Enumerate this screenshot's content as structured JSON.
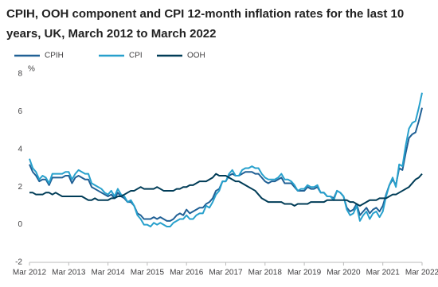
{
  "chart_data": {
    "type": "line",
    "title": "CPIH, OOH component and CPI 12-month inflation rates for the last 10 years, UK, March 2012 to March 2022",
    "y_label": "%",
    "categories": [
      "Mar 2012",
      null,
      null,
      null,
      null,
      null,
      null,
      null,
      null,
      null,
      null,
      null,
      "Mar 2013",
      null,
      null,
      null,
      null,
      null,
      null,
      null,
      null,
      null,
      null,
      null,
      "Mar 2014",
      null,
      null,
      null,
      null,
      null,
      null,
      null,
      null,
      null,
      null,
      null,
      "Mar 2015",
      null,
      null,
      null,
      null,
      null,
      null,
      null,
      null,
      null,
      null,
      null,
      "Mar 2016",
      null,
      null,
      null,
      null,
      null,
      null,
      null,
      null,
      null,
      null,
      null,
      "Mar 2017",
      null,
      null,
      null,
      null,
      null,
      null,
      null,
      null,
      null,
      null,
      null,
      "Mar 2018",
      null,
      null,
      null,
      null,
      null,
      null,
      null,
      null,
      null,
      null,
      null,
      "Mar 2019",
      null,
      null,
      null,
      null,
      null,
      null,
      null,
      null,
      null,
      null,
      null,
      "Mar 2020",
      null,
      null,
      null,
      null,
      null,
      null,
      null,
      null,
      null,
      null,
      null,
      "Mar 2021",
      null,
      null,
      null,
      null,
      null,
      null,
      null,
      null,
      null,
      null,
      null,
      "Mar 2022"
    ],
    "series": [
      {
        "name": "CPIH",
        "color": "#206095",
        "values": [
          3.2,
          2.8,
          2.6,
          2.3,
          2.4,
          2.4,
          2.1,
          2.5,
          2.5,
          2.5,
          2.5,
          2.6,
          2.6,
          2.2,
          2.5,
          2.6,
          2.5,
          2.4,
          2.4,
          2.0,
          1.9,
          1.8,
          1.7,
          1.6,
          1.5,
          1.6,
          1.4,
          1.7,
          1.5,
          1.4,
          1.2,
          1.2,
          1.0,
          0.6,
          0.5,
          0.3,
          0.3,
          0.3,
          0.4,
          0.3,
          0.4,
          0.3,
          0.2,
          0.2,
          0.3,
          0.5,
          0.6,
          0.5,
          0.8,
          0.6,
          0.7,
          0.8,
          0.9,
          0.9,
          1.1,
          1.2,
          1.4,
          1.8,
          1.9,
          2.3,
          2.3,
          2.6,
          2.7,
          2.6,
          2.6,
          2.7,
          2.8,
          2.8,
          2.8,
          2.7,
          2.7,
          2.5,
          2.3,
          2.2,
          2.3,
          2.3,
          2.4,
          2.5,
          2.2,
          2.2,
          2.2,
          2.0,
          1.8,
          1.8,
          1.8,
          2.0,
          1.9,
          1.9,
          2.0,
          1.7,
          1.7,
          1.5,
          1.5,
          1.4,
          1.8,
          1.7,
          1.5,
          0.9,
          0.7,
          0.8,
          1.1,
          0.5,
          0.7,
          0.9,
          0.6,
          0.8,
          0.9,
          0.7,
          1.0,
          1.6,
          2.1,
          2.4,
          2.1,
          3.0,
          2.9,
          3.8,
          4.6,
          4.8,
          4.9,
          5.5,
          6.2
        ]
      },
      {
        "name": "CPI",
        "color": "#27a0cc",
        "values": [
          3.5,
          3.0,
          2.8,
          2.4,
          2.6,
          2.5,
          2.2,
          2.7,
          2.7,
          2.7,
          2.7,
          2.8,
          2.8,
          2.4,
          2.7,
          2.9,
          2.8,
          2.7,
          2.7,
          2.2,
          2.1,
          2.0,
          1.9,
          1.7,
          1.6,
          1.8,
          1.5,
          1.9,
          1.6,
          1.5,
          1.2,
          1.3,
          1.0,
          0.5,
          0.3,
          0.0,
          0.0,
          -0.1,
          0.1,
          0.0,
          0.1,
          0.0,
          -0.1,
          -0.1,
          0.1,
          0.2,
          0.3,
          0.3,
          0.5,
          0.3,
          0.3,
          0.5,
          0.6,
          0.6,
          1.0,
          0.9,
          1.2,
          1.6,
          1.8,
          2.3,
          2.3,
          2.7,
          2.9,
          2.6,
          2.6,
          2.9,
          3.0,
          3.0,
          3.1,
          3.0,
          3.0,
          2.7,
          2.5,
          2.4,
          2.4,
          2.4,
          2.5,
          2.7,
          2.4,
          2.4,
          2.3,
          2.1,
          1.8,
          1.9,
          1.9,
          2.1,
          2.0,
          2.0,
          2.1,
          1.7,
          1.7,
          1.5,
          1.5,
          1.3,
          1.8,
          1.7,
          1.5,
          0.8,
          0.5,
          0.6,
          1.0,
          0.2,
          0.5,
          0.7,
          0.3,
          0.6,
          0.7,
          0.4,
          0.7,
          1.5,
          2.1,
          2.5,
          2.0,
          3.2,
          3.1,
          4.2,
          5.1,
          5.4,
          5.5,
          6.2,
          7.0
        ]
      },
      {
        "name": "OOH",
        "color": "#003c57",
        "values": [
          1.7,
          1.7,
          1.6,
          1.6,
          1.6,
          1.7,
          1.7,
          1.6,
          1.7,
          1.6,
          1.5,
          1.5,
          1.5,
          1.5,
          1.5,
          1.5,
          1.5,
          1.4,
          1.3,
          1.3,
          1.4,
          1.3,
          1.3,
          1.3,
          1.3,
          1.4,
          1.4,
          1.5,
          1.5,
          1.6,
          1.7,
          1.8,
          1.8,
          1.9,
          2.0,
          1.9,
          1.9,
          1.9,
          1.9,
          2.0,
          1.9,
          1.8,
          1.8,
          1.8,
          1.8,
          1.9,
          1.9,
          2.0,
          2.0,
          2.1,
          2.1,
          2.2,
          2.3,
          2.3,
          2.3,
          2.4,
          2.5,
          2.7,
          2.6,
          2.6,
          2.6,
          2.5,
          2.4,
          2.3,
          2.3,
          2.2,
          2.1,
          2.0,
          1.9,
          1.8,
          1.6,
          1.4,
          1.3,
          1.2,
          1.2,
          1.2,
          1.2,
          1.2,
          1.1,
          1.1,
          1.1,
          1.0,
          1.1,
          1.1,
          1.1,
          1.1,
          1.2,
          1.2,
          1.2,
          1.2,
          1.2,
          1.3,
          1.3,
          1.3,
          1.3,
          1.3,
          1.3,
          1.3,
          1.2,
          1.2,
          1.1,
          1.0,
          1.1,
          1.2,
          1.3,
          1.3,
          1.3,
          1.4,
          1.4,
          1.4,
          1.5,
          1.6,
          1.6,
          1.7,
          1.8,
          1.9,
          2.0,
          2.2,
          2.4,
          2.5,
          2.7
        ]
      }
    ],
    "ylim": [
      -2,
      8
    ],
    "yticks": [
      -2,
      0,
      2,
      4,
      6,
      8
    ],
    "grid": false
  }
}
